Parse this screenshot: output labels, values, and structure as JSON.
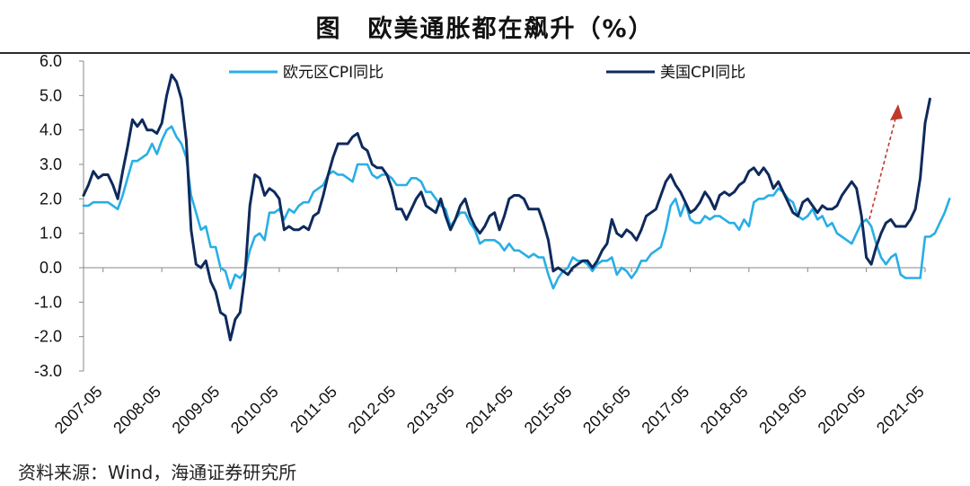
{
  "title": "图　欧美通胀都在飙升（%）",
  "source": "资料来源：Wind，海通证券研究所",
  "chart_data": {
    "type": "line",
    "title": "图　欧美通胀都在飙升（%）",
    "xlabel": "",
    "ylabel": "",
    "ylim": [
      -3.0,
      6.0
    ],
    "yticks": [
      "6.0",
      "5.0",
      "4.0",
      "3.0",
      "2.0",
      "1.0",
      "0.0",
      "-1.0",
      "-2.0",
      "-3.0"
    ],
    "xticks": [
      "2007-05",
      "2008-05",
      "2009-05",
      "2010-05",
      "2011-05",
      "2012-05",
      "2013-05",
      "2014-05",
      "2015-05",
      "2016-05",
      "2017-05",
      "2018-05",
      "2019-05",
      "2020-05",
      "2021-05"
    ],
    "x_start": "2007-01",
    "x_end": "2021-05",
    "grid": false,
    "legend_position": "top",
    "series": [
      {
        "name": "欧元区CPI同比",
        "color": "#29aee6",
        "values": [
          1.8,
          1.8,
          1.9,
          1.9,
          1.9,
          1.9,
          1.8,
          1.7,
          2.1,
          2.6,
          3.1,
          3.1,
          3.2,
          3.3,
          3.6,
          3.3,
          3.7,
          4.0,
          4.1,
          3.8,
          3.6,
          3.2,
          2.1,
          1.6,
          1.1,
          1.2,
          0.6,
          0.6,
          0.0,
          -0.1,
          -0.6,
          -0.2,
          -0.3,
          -0.1,
          0.5,
          0.9,
          1.0,
          0.8,
          1.6,
          1.6,
          1.7,
          1.4,
          1.7,
          1.6,
          1.8,
          1.9,
          1.9,
          2.2,
          2.3,
          2.4,
          2.7,
          2.8,
          2.7,
          2.7,
          2.6,
          2.5,
          3.0,
          3.0,
          3.0,
          2.7,
          2.6,
          2.7,
          2.7,
          2.6,
          2.4,
          2.4,
          2.4,
          2.6,
          2.6,
          2.5,
          2.2,
          2.2,
          2.0,
          1.8,
          1.7,
          1.2,
          1.4,
          1.6,
          1.6,
          1.3,
          1.1,
          0.7,
          0.8,
          0.8,
          0.8,
          0.7,
          0.5,
          0.7,
          0.5,
          0.5,
          0.4,
          0.3,
          0.4,
          0.3,
          0.3,
          -0.2,
          -0.6,
          -0.3,
          -0.1,
          0.0,
          0.3,
          0.2,
          0.2,
          0.1,
          -0.1,
          0.1,
          0.2,
          0.2,
          0.3,
          -0.2,
          0.0,
          -0.1,
          -0.3,
          -0.1,
          0.2,
          0.2,
          0.4,
          0.5,
          0.6,
          1.1,
          1.8,
          2.0,
          1.5,
          1.9,
          1.4,
          1.3,
          1.3,
          1.5,
          1.4,
          1.5,
          1.5,
          1.4,
          1.3,
          1.3,
          1.1,
          1.4,
          1.2,
          1.9,
          2.0,
          2.0,
          2.1,
          2.1,
          2.3,
          2.2,
          2.0,
          1.9,
          1.5,
          1.4,
          1.5,
          1.7,
          1.4,
          1.5,
          1.2,
          1.3,
          1.0,
          0.9,
          0.8,
          0.7,
          1.0,
          1.3,
          1.4,
          1.2,
          0.7,
          0.3,
          0.1,
          0.3,
          0.4,
          -0.2,
          -0.3,
          -0.3,
          -0.3,
          -0.3,
          0.9,
          0.9,
          1.0,
          1.3,
          1.6,
          2.0
        ]
      },
      {
        "name": "美国CPI同比",
        "color": "#0e2a5c",
        "values": [
          2.1,
          2.4,
          2.8,
          2.6,
          2.7,
          2.7,
          2.4,
          2.0,
          2.8,
          3.5,
          4.3,
          4.1,
          4.3,
          4.0,
          4.0,
          3.9,
          4.2,
          5.0,
          5.6,
          5.4,
          4.9,
          3.7,
          1.1,
          0.1,
          0.0,
          0.2,
          -0.4,
          -0.7,
          -1.3,
          -1.4,
          -2.1,
          -1.5,
          -1.3,
          -0.2,
          1.8,
          2.7,
          2.6,
          2.1,
          2.3,
          2.2,
          2.0,
          1.1,
          1.2,
          1.1,
          1.1,
          1.2,
          1.1,
          1.5,
          1.6,
          2.1,
          2.7,
          3.2,
          3.6,
          3.6,
          3.6,
          3.8,
          3.9,
          3.5,
          3.4,
          3.0,
          2.9,
          2.9,
          2.7,
          2.3,
          1.7,
          1.7,
          1.4,
          1.7,
          2.0,
          2.2,
          1.8,
          1.7,
          1.6,
          2.0,
          1.5,
          1.1,
          1.4,
          1.8,
          2.0,
          1.5,
          1.2,
          1.0,
          1.2,
          1.5,
          1.6,
          1.1,
          1.5,
          2.0,
          2.1,
          2.1,
          2.0,
          1.7,
          1.7,
          1.7,
          1.3,
          0.8,
          -0.1,
          0.0,
          -0.1,
          -0.2,
          0.0,
          0.1,
          0.2,
          0.2,
          0.0,
          0.2,
          0.5,
          0.7,
          1.4,
          1.0,
          0.9,
          1.1,
          1.0,
          0.8,
          1.1,
          1.5,
          1.6,
          1.7,
          2.1,
          2.5,
          2.7,
          2.4,
          2.2,
          1.9,
          1.6,
          1.7,
          1.9,
          2.2,
          2.0,
          1.7,
          2.1,
          2.2,
          2.1,
          2.2,
          2.4,
          2.5,
          2.8,
          2.9,
          2.7,
          2.9,
          2.7,
          2.3,
          2.5,
          2.2,
          1.9,
          1.6,
          1.5,
          1.9,
          2.0,
          1.8,
          1.6,
          1.8,
          1.7,
          1.7,
          1.8,
          2.1,
          2.3,
          2.5,
          2.3,
          1.5,
          0.3,
          0.1,
          0.6,
          1.0,
          1.3,
          1.4,
          1.2,
          1.2,
          1.2,
          1.4,
          1.7,
          2.6,
          4.2,
          4.9
        ]
      }
    ]
  }
}
